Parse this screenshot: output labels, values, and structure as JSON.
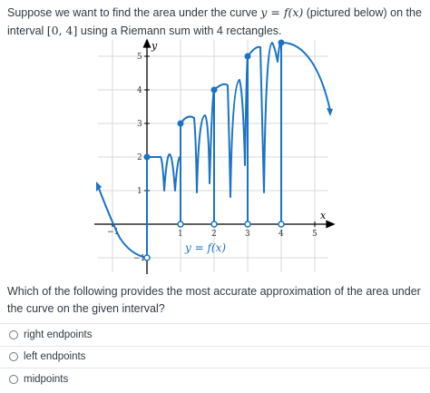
{
  "question": {
    "prefix": "Suppose we want to find the area under the curve ",
    "fn_lhs": "y",
    "fn_eq": " = ",
    "fn_rhs": "f(x)",
    "mid": " (pictured below) on the interval ",
    "interval": "[0, 4]",
    "suffix": " using a Riemann sum with 4 rectangles.",
    "prompt": "Which of the following provides the most accurate approximation of the area under the curve on the given interval?"
  },
  "graph": {
    "curve_label": "y = f(x)",
    "x_axis_label": "x",
    "y_axis_label": "y",
    "x_ticks": [
      "−1",
      "1",
      "2",
      "3",
      "4",
      "5"
    ],
    "y_ticks": [
      "−1",
      "1",
      "2",
      "3",
      "4",
      "5"
    ],
    "line_color": "#1a73c6",
    "xlim": [
      -1.3,
      5.5
    ],
    "ylim": [
      -1.5,
      5.4
    ]
  },
  "answers": [
    {
      "label": "right endpoints"
    },
    {
      "label": "left endpoints"
    },
    {
      "label": "midpoints"
    }
  ]
}
